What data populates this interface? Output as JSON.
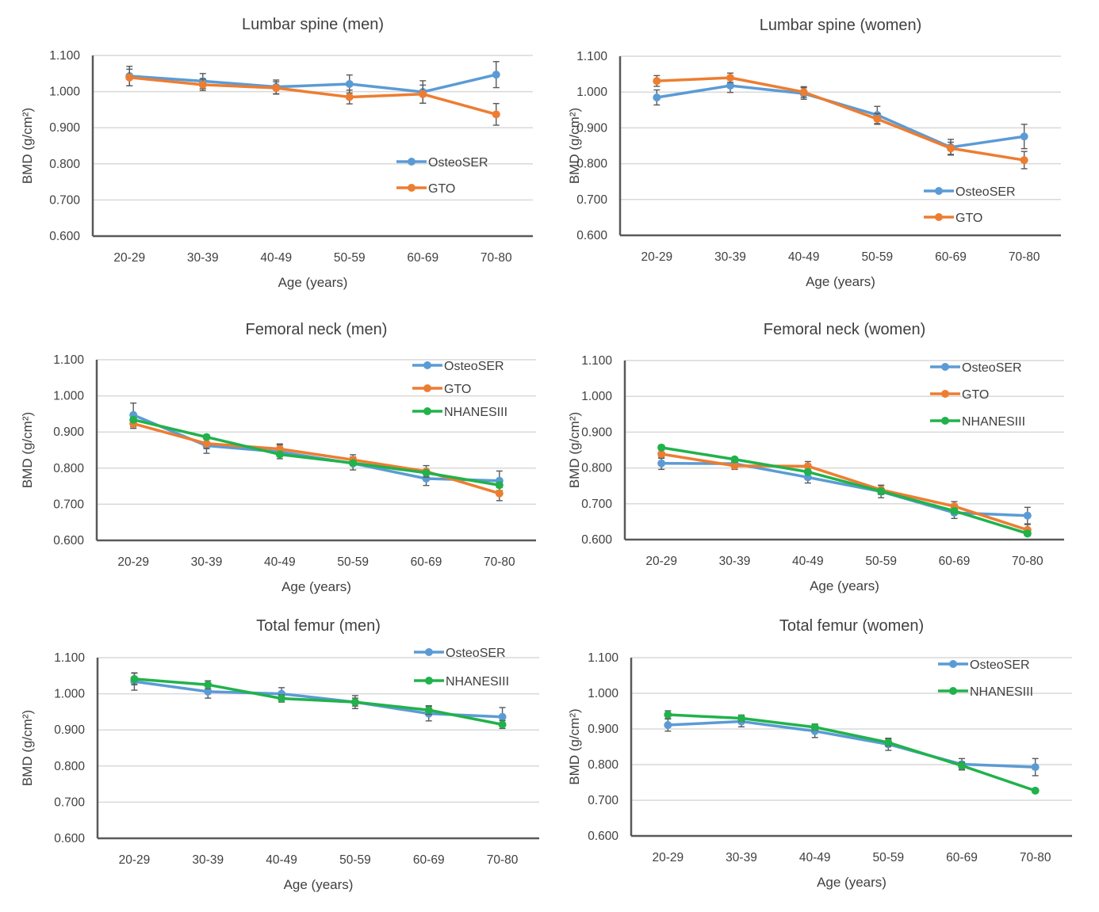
{
  "figure": {
    "series_colors": {
      "OsteoSER": "#5b9bd5",
      "GTO": "#ed7d31",
      "NHANESIII": "#21b24b"
    }
  },
  "chart_data": [
    {
      "type": "line",
      "title": "Lumbar spine (men)",
      "xlabel": "Age (years)",
      "ylabel": "BMD (g/cm²)",
      "categories": [
        "20-29",
        "30-39",
        "40-49",
        "50-59",
        "60-69",
        "70-80"
      ],
      "yticks": [
        "0.600",
        "0.700",
        "0.800",
        "0.900",
        "1.000",
        "1.100"
      ],
      "ylim": [
        0.6,
        1.1
      ],
      "grid": true,
      "legend_position": "middle-right",
      "series": [
        {
          "name": "OsteoSER",
          "values": [
            1.043,
            1.029,
            1.013,
            1.021,
            0.999,
            1.047
          ],
          "errors": [
            0.027,
            0.021,
            0.019,
            0.025,
            0.031,
            0.036
          ]
        },
        {
          "name": "GTO",
          "values": [
            1.039,
            1.019,
            1.01,
            0.985,
            0.993,
            0.937
          ],
          "errors": [
            0.023,
            0.016,
            0.017,
            0.019,
            0.025,
            0.03
          ]
        }
      ]
    },
    {
      "type": "line",
      "title": "Lumbar spine (women)",
      "xlabel": "Age (years)",
      "ylabel": "BMD (g/cm²)",
      "categories": [
        "20-29",
        "30-39",
        "40-49",
        "50-59",
        "60-69",
        "70-80"
      ],
      "yticks": [
        "0.600",
        "0.700",
        "0.800",
        "0.900",
        "1.000",
        "1.100"
      ],
      "ylim": [
        0.6,
        1.1
      ],
      "grid": true,
      "legend_position": "bottom-right",
      "series": [
        {
          "name": "OsteoSER",
          "values": [
            0.985,
            1.018,
            0.996,
            0.936,
            0.846,
            0.876
          ],
          "errors": [
            0.021,
            0.019,
            0.016,
            0.024,
            0.022,
            0.034
          ]
        },
        {
          "name": "GTO",
          "values": [
            1.031,
            1.04,
            1.0,
            0.925,
            0.843,
            0.81
          ],
          "errors": [
            0.015,
            0.013,
            0.015,
            0.015,
            0.017,
            0.024
          ]
        }
      ]
    },
    {
      "type": "line",
      "title": "Femoral neck (men)",
      "xlabel": "Age (years)",
      "ylabel": "BMD (g/cm²)",
      "categories": [
        "20-29",
        "30-39",
        "40-49",
        "50-59",
        "60-69",
        "70-80"
      ],
      "yticks": [
        "0.600",
        "0.700",
        "0.800",
        "0.900",
        "1.000",
        "1.100"
      ],
      "ylim": [
        0.6,
        1.1
      ],
      "grid": true,
      "legend_position": "top-right",
      "series": [
        {
          "name": "OsteoSER",
          "values": [
            0.947,
            0.862,
            0.845,
            0.813,
            0.771,
            0.765
          ],
          "errors": [
            0.033,
            0.021,
            0.019,
            0.018,
            0.019,
            0.027
          ]
        },
        {
          "name": "GTO",
          "values": [
            0.923,
            0.868,
            0.853,
            0.823,
            0.791,
            0.73
          ],
          "errors": [
            0.013,
            0.014,
            0.014,
            0.014,
            0.016,
            0.02
          ]
        },
        {
          "name": "NHANESIII",
          "values": [
            0.934,
            0.886,
            0.838,
            0.814,
            0.787,
            0.753
          ],
          "errors": [
            0.006,
            0.006,
            0.006,
            0.006,
            0.006,
            0.007
          ]
        }
      ]
    },
    {
      "type": "line",
      "title": "Femoral neck (women)",
      "xlabel": "Age (years)",
      "ylabel": "BMD (g/cm²)",
      "categories": [
        "20-29",
        "30-39",
        "40-49",
        "50-59",
        "60-69",
        "70-80"
      ],
      "yticks": [
        "0.600",
        "0.700",
        "0.800",
        "0.900",
        "1.000",
        "1.100"
      ],
      "ylim": [
        0.6,
        1.1
      ],
      "grid": true,
      "legend_position": "top-right",
      "series": [
        {
          "name": "OsteoSER",
          "values": [
            0.813,
            0.812,
            0.774,
            0.734,
            0.675,
            0.667
          ],
          "errors": [
            0.017,
            0.011,
            0.016,
            0.017,
            0.016,
            0.023
          ]
        },
        {
          "name": "GTO",
          "values": [
            0.839,
            0.806,
            0.805,
            0.739,
            0.693,
            0.627
          ],
          "errors": [
            0.012,
            0.01,
            0.013,
            0.013,
            0.013,
            0.015
          ]
        },
        {
          "name": "NHANESIII",
          "values": [
            0.857,
            0.824,
            0.789,
            0.735,
            0.68,
            0.617
          ],
          "errors": [
            0.006,
            0.006,
            0.006,
            0.006,
            0.006,
            0.006
          ]
        }
      ]
    },
    {
      "type": "line",
      "title": "Total femur (men)",
      "xlabel": "Age (years)",
      "ylabel": "BMD (g/cm²)",
      "categories": [
        "20-29",
        "30-39",
        "40-49",
        "50-59",
        "60-69",
        "70-80"
      ],
      "yticks": [
        "0.600",
        "0.700",
        "0.800",
        "0.900",
        "1.000",
        "1.100"
      ],
      "ylim": [
        0.6,
        1.1
      ],
      "grid": true,
      "legend_position": "top-right",
      "series": [
        {
          "name": "OsteoSER",
          "values": [
            1.034,
            1.006,
            1.0,
            0.977,
            0.945,
            0.936
          ],
          "errors": [
            0.024,
            0.018,
            0.017,
            0.018,
            0.02,
            0.026
          ]
        },
        {
          "name": "NHANESIII",
          "values": [
            1.041,
            1.025,
            0.987,
            0.977,
            0.955,
            0.915
          ],
          "errors": [
            0.016,
            0.011,
            0.01,
            0.011,
            0.012,
            0.011
          ]
        }
      ]
    },
    {
      "type": "line",
      "title": "Total femur (women)",
      "xlabel": "Age (years)",
      "ylabel": "BMD (g/cm²)",
      "categories": [
        "20-29",
        "30-39",
        "40-49",
        "50-59",
        "60-69",
        "70-80"
      ],
      "yticks": [
        "0.600",
        "0.700",
        "0.800",
        "0.900",
        "1.000",
        "1.100"
      ],
      "ylim": [
        0.6,
        1.1
      ],
      "grid": true,
      "legend_position": "top-right",
      "series": [
        {
          "name": "OsteoSER",
          "values": [
            0.911,
            0.921,
            0.894,
            0.857,
            0.801,
            0.793
          ],
          "errors": [
            0.017,
            0.015,
            0.018,
            0.017,
            0.016,
            0.024
          ]
        },
        {
          "name": "NHANESIII",
          "values": [
            0.94,
            0.93,
            0.905,
            0.862,
            0.797,
            0.727
          ],
          "errors": [
            0.011,
            0.009,
            0.009,
            0.01,
            0.01,
            0.006
          ]
        }
      ]
    }
  ]
}
